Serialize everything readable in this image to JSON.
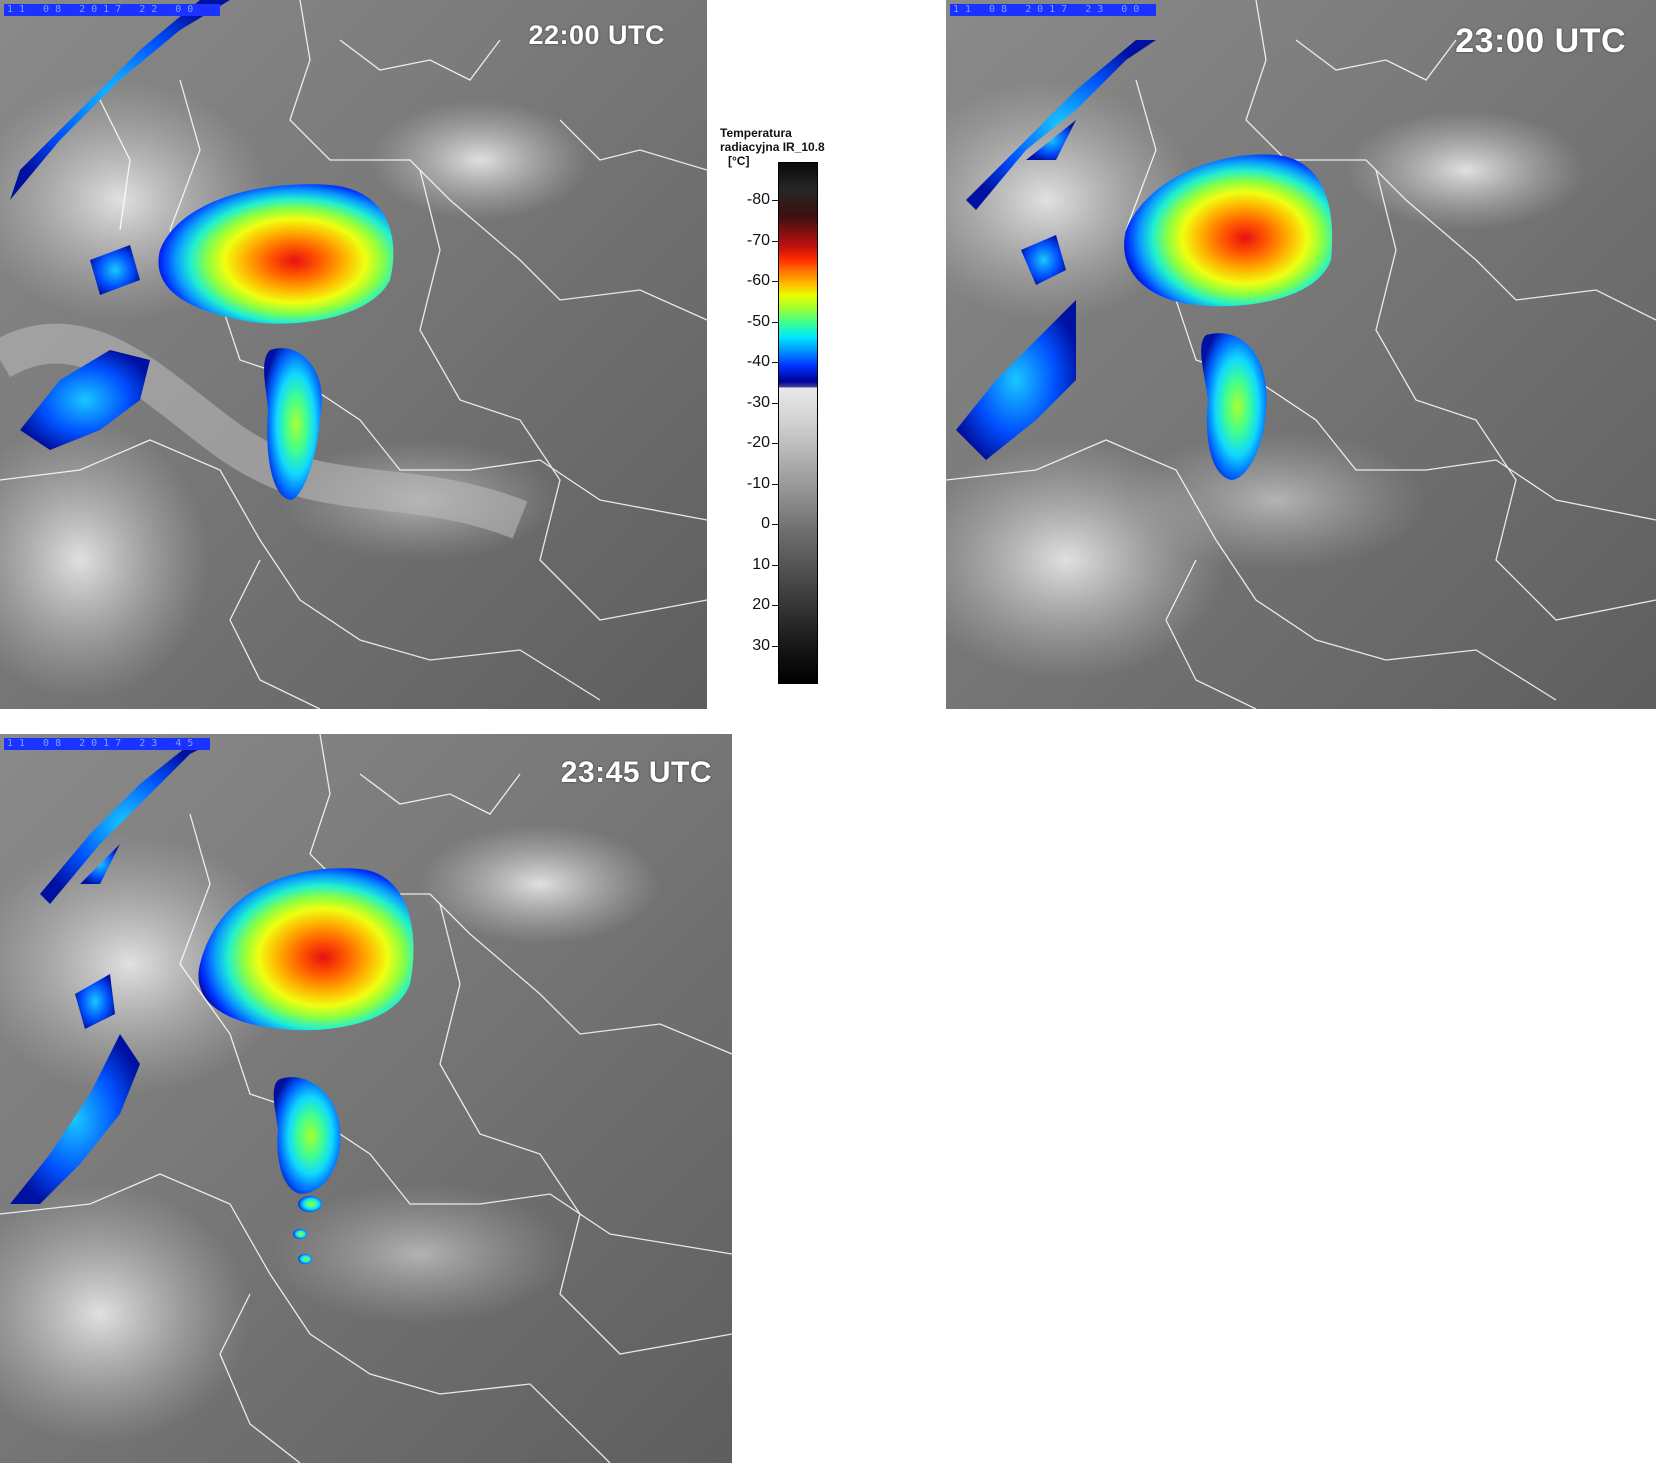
{
  "panels": [
    {
      "time": "22:00 UTC",
      "date_stamp": "11 08 2017 22 00"
    },
    {
      "time": "23:00 UTC",
      "date_stamp": "11 08 2017 23 00"
    },
    {
      "time": "23:45 UTC",
      "date_stamp": "11 08 2017 23 45"
    }
  ],
  "legend": {
    "title_line1": "Temperatura",
    "title_line2": "radiacyjna IR_10.8",
    "unit": "[°C]",
    "ticks": [
      "-80",
      "-70",
      "-60",
      "-50",
      "-40",
      "-30",
      "-20",
      "-10",
      "0",
      "10",
      "20",
      "30"
    ]
  },
  "colors": {
    "land_gray": "#6e6e6e",
    "border_white": "#ffffff",
    "cold_core": "#e8101a",
    "stamp_bar": "#1a33ff"
  }
}
